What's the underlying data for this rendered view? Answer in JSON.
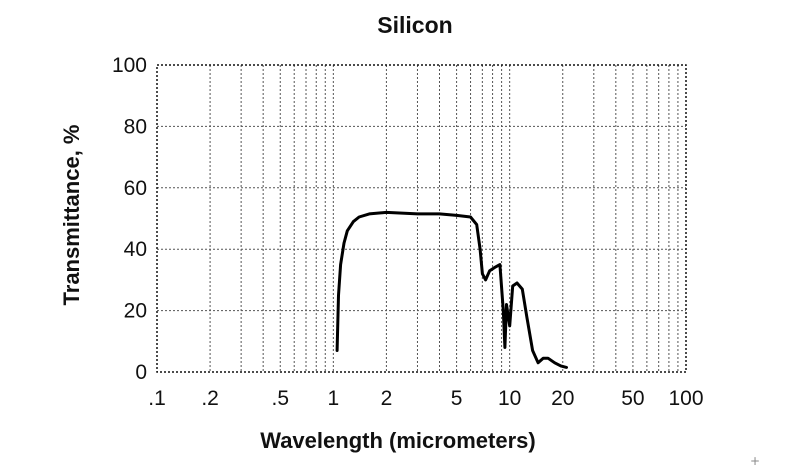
{
  "chart_data": {
    "type": "line",
    "title": "Silicon",
    "xlabel": "Wavelength (micrometers)",
    "ylabel": "Transmittance, %",
    "x_scale": "log",
    "xlim": [
      0.1,
      100
    ],
    "ylim": [
      0,
      100
    ],
    "grid": true,
    "x_ticks": [
      {
        "value": 0.1,
        "label": ".1"
      },
      {
        "value": 0.2,
        "label": ".2"
      },
      {
        "value": 0.5,
        "label": ".5"
      },
      {
        "value": 1,
        "label": "1"
      },
      {
        "value": 2,
        "label": "2"
      },
      {
        "value": 5,
        "label": "5"
      },
      {
        "value": 10,
        "label": "10"
      },
      {
        "value": 20,
        "label": "20"
      },
      {
        "value": 50,
        "label": "50"
      },
      {
        "value": 100,
        "label": "100"
      }
    ],
    "y_ticks": [
      {
        "value": 0,
        "label": "0"
      },
      {
        "value": 20,
        "label": "20"
      },
      {
        "value": 40,
        "label": "40"
      },
      {
        "value": 60,
        "label": "60"
      },
      {
        "value": 80,
        "label": "80"
      },
      {
        "value": 100,
        "label": "100"
      }
    ],
    "series": [
      {
        "color": "#000000",
        "points": [
          [
            1.05,
            7
          ],
          [
            1.07,
            25
          ],
          [
            1.1,
            35
          ],
          [
            1.15,
            42
          ],
          [
            1.2,
            46
          ],
          [
            1.3,
            49
          ],
          [
            1.4,
            50.5
          ],
          [
            1.6,
            51.5
          ],
          [
            2.0,
            52
          ],
          [
            3.0,
            51.5
          ],
          [
            4.0,
            51.5
          ],
          [
            5.0,
            51
          ],
          [
            6.0,
            50.5
          ],
          [
            6.5,
            48
          ],
          [
            6.8,
            40
          ],
          [
            7.0,
            32
          ],
          [
            7.3,
            30
          ],
          [
            7.7,
            33
          ],
          [
            8.2,
            34
          ],
          [
            8.8,
            35
          ],
          [
            9.2,
            20
          ],
          [
            9.4,
            8
          ],
          [
            9.6,
            22
          ],
          [
            10.0,
            15
          ],
          [
            10.4,
            28
          ],
          [
            11.0,
            29
          ],
          [
            11.8,
            27
          ],
          [
            12.5,
            18
          ],
          [
            13.5,
            7
          ],
          [
            14.5,
            3
          ],
          [
            15.5,
            4.5
          ],
          [
            16.5,
            4.5
          ],
          [
            18,
            3
          ],
          [
            19.5,
            2
          ],
          [
            21,
            1.5
          ]
        ]
      }
    ]
  },
  "corner_mark": "+"
}
